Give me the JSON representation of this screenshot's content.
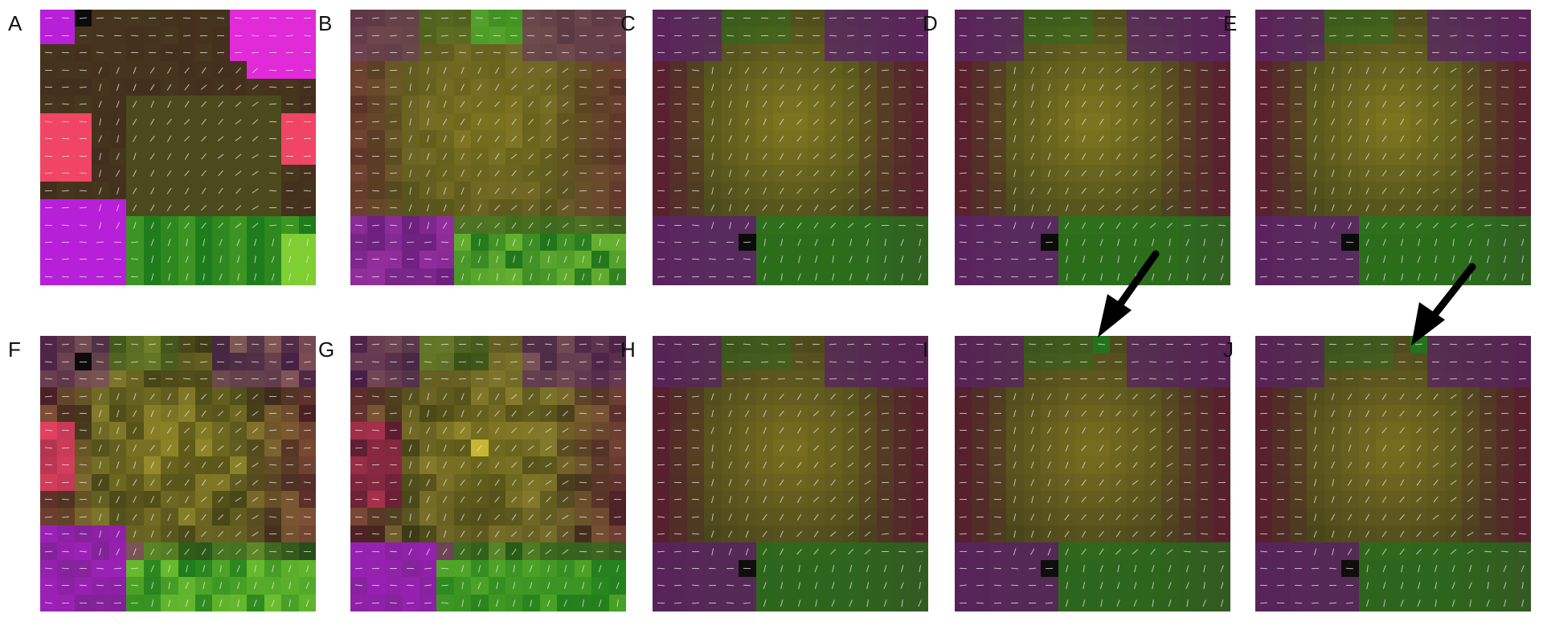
{
  "figure": {
    "panels": [
      {
        "label": "A",
        "map": "A"
      },
      {
        "label": "B",
        "map": "B"
      },
      {
        "label": "C",
        "map": "C"
      },
      {
        "label": "D",
        "map": "D"
      },
      {
        "label": "E",
        "map": "E"
      },
      {
        "label": "F",
        "map": "F"
      },
      {
        "label": "G",
        "map": "G"
      },
      {
        "label": "H",
        "map": "H"
      },
      {
        "label": "I",
        "map": "I",
        "arrow": true
      },
      {
        "label": "J",
        "map": "J",
        "arrow": true
      }
    ],
    "colors": {
      "magenta": "#b81fd9",
      "pink_magenta": "#e12ad8",
      "salmon_red": "#f04565",
      "dark_maroon": "#3f1f1e",
      "olive": "#4b4a1c",
      "yellow_olive": "#80781f",
      "green": "#1f7c1c",
      "bright_green": "#7fcf33",
      "purple": "#5a2468",
      "wine": "#5a1c30",
      "black": "#0b0b0b",
      "stroke": "#e8e8e8",
      "arrow": "#000000"
    }
  }
}
